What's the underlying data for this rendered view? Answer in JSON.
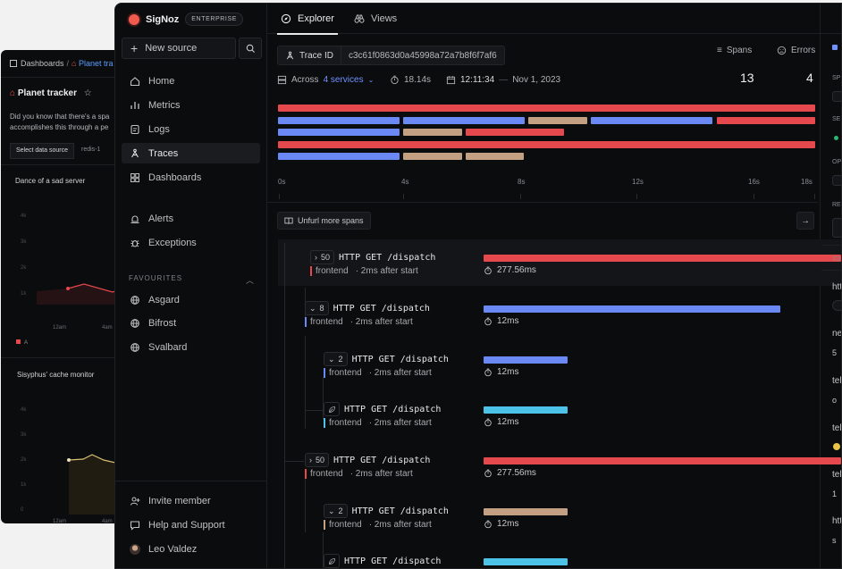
{
  "back_panel": {
    "breadcrumb_root": "Dashboards",
    "breadcrumb_sep": "/",
    "breadcrumb_current": "Planet tra",
    "title": "Planet tracker",
    "description_1": "Did you know that there's a spa",
    "description_2": "accomplishes this through a pe",
    "data_source_label": "Select data source",
    "data_source_value": "redis-1",
    "chart1_title": "Dance of a sad server",
    "chart1_yticks": [
      "4k",
      "3k",
      "2k",
      "1k"
    ],
    "chart1_xticks": [
      "12am",
      "4am"
    ],
    "chart1_legend": "A",
    "chart2_title": "Sisyphus' cache monitor",
    "chart2_yticks": [
      "4k",
      "3k",
      "2k",
      "1k",
      "0"
    ],
    "chart2_xticks": [
      "12am",
      "4am"
    ]
  },
  "sidebar": {
    "brand": "SigNoz",
    "badge": "ENTERPRISE",
    "new_source": "New source",
    "nav": [
      "Home",
      "Metrics",
      "Logs",
      "Traces",
      "Dashboards",
      "Alerts",
      "Exceptions"
    ],
    "favourites_header": "FAVOURITES",
    "favourites": [
      "Asgard",
      "Bifrost",
      "Svalbard"
    ],
    "invite": "Invite member",
    "help": "Help and Support",
    "user": "Leo Valdez"
  },
  "tabs": {
    "explorer": "Explorer",
    "views": "Views"
  },
  "trace": {
    "id_label": "Trace ID",
    "id_value": "c3c61f0863d0a45998a72a7b8f6f7af6",
    "across_prefix": "Across",
    "services": "4 services",
    "duration": "18.14s",
    "time": "12:11:34",
    "dash": "—",
    "date": "Nov 1, 2023",
    "spans_label": "Spans",
    "spans_value": "13",
    "errors_label": "Errors",
    "errors_value": "4"
  },
  "minimap": {
    "ticks": [
      "0s",
      "4s",
      "8s",
      "12s",
      "16s",
      "18s"
    ],
    "colors": {
      "error": "#e5484d",
      "blue": "#6a89f5",
      "tan": "#c4a082"
    }
  },
  "unfurl": "Unfurl more spans",
  "spans": [
    {
      "toggle": "›",
      "count": "50",
      "name": "HTTP GET /dispatch",
      "service": "frontend",
      "offset": "2ms after start",
      "duration": "277.56ms",
      "color": "#e5484d"
    },
    {
      "toggle": "⌄",
      "count": "8",
      "name": "HTTP GET /dispatch",
      "service": "frontend",
      "offset": "2ms after start",
      "duration": "12ms",
      "color": "#6a89f5"
    },
    {
      "toggle": "⌄",
      "count": "2",
      "name": "HTTP GET /dispatch",
      "service": "frontend",
      "offset": "2ms after start",
      "duration": "12ms",
      "color": "#6a89f5"
    },
    {
      "toggle": "",
      "count": "",
      "name": "HTTP GET /dispatch",
      "service": "frontend",
      "offset": "2ms after start",
      "duration": "12ms",
      "color": "#4cc3e6"
    },
    {
      "toggle": "›",
      "count": "50",
      "name": "HTTP GET /dispatch",
      "service": "frontend",
      "offset": "2ms after start",
      "duration": "277.56ms",
      "color": "#e5484d"
    },
    {
      "toggle": "⌄",
      "count": "2",
      "name": "HTTP GET /dispatch",
      "service": "frontend",
      "offset": "2ms after start",
      "duration": "12ms",
      "color": "#c4a082"
    },
    {
      "toggle": "",
      "count": "",
      "name": "HTTP GET /dispatch",
      "service": "",
      "offset": "",
      "duration": "",
      "color": "#4cc3e6"
    }
  ],
  "right_panel": {
    "labels": [
      "SP",
      "SE",
      "OP",
      "RE"
    ],
    "texts": [
      "htt",
      "ne",
      "tel",
      "tel",
      "tel",
      "htt"
    ],
    "values": [
      "5",
      "o",
      "1",
      "s"
    ]
  }
}
